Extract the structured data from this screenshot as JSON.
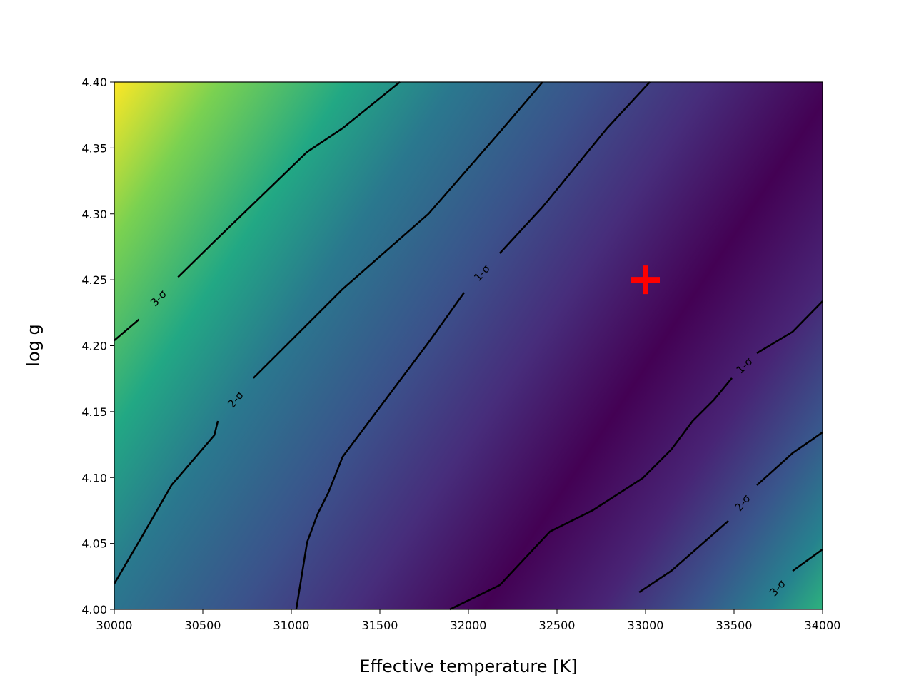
{
  "chart_data": {
    "type": "contour",
    "xlabel": "Effective temperature [K]",
    "ylabel": "log g",
    "xlim": [
      30000,
      34000
    ],
    "ylim": [
      4.0,
      4.4
    ],
    "xticks": [
      30000,
      30500,
      31000,
      31500,
      32000,
      32500,
      33000,
      33500,
      34000
    ],
    "yticks": [
      {
        "value": 4.0,
        "label": "4.00"
      },
      4.05,
      {
        "value": 4.1,
        "label": "4.10"
      },
      4.15,
      {
        "value": 4.2,
        "label": "4.20"
      },
      4.25,
      {
        "value": 4.3,
        "label": "4.30"
      },
      4.35,
      {
        "value": 4.4,
        "label": "4.40"
      }
    ],
    "line_color": "#000000",
    "contours": [
      {
        "label": "3-σ",
        "x": [
          30000,
          30140,
          null,
          30360,
          30565,
          31089,
          31290,
          31613
        ],
        "y": [
          4.204,
          4.22,
          null,
          4.252,
          4.279,
          4.347,
          4.365,
          4.4
        ]
      },
      {
        "label": "2-σ",
        "x": [
          30000,
          30161,
          30323,
          30565,
          30585,
          null,
          30786,
          31290,
          31774,
          32177,
          32419
        ],
        "y": [
          4.0195,
          4.0563,
          4.0942,
          4.1321,
          4.1429,
          null,
          4.1754,
          4.243,
          4.3,
          4.362,
          4.4
        ]
      },
      {
        "label": "1-σ",
        "x": [
          31028,
          31089,
          31149,
          31210,
          31290,
          31532,
          31774,
          31976,
          null,
          32177,
          32419,
          32782,
          33024
        ],
        "y": [
          4.0,
          4.0509,
          4.0725,
          4.0888,
          4.1158,
          4.1591,
          4.2024,
          4.2403,
          null,
          4.2701,
          4.3053,
          4.3648,
          4.4
        ]
      },
      {
        "label": "1-σ",
        "x": [
          31895,
          32177,
          32460,
          32702,
          32984,
          33145,
          33266,
          33387,
          33488,
          null,
          33629,
          33831,
          34000
        ],
        "y": [
          4.0,
          4.0184,
          4.059,
          4.0752,
          4.0996,
          4.1212,
          4.1429,
          4.1591,
          4.1754,
          null,
          4.1943,
          4.2106,
          4.2338
        ]
      },
      {
        "label": "2-σ",
        "x": [
          32964,
          33145,
          33468,
          null,
          33629,
          33831,
          34000
        ],
        "y": [
          4.013,
          4.0292,
          4.0671,
          null,
          4.0942,
          4.1186,
          4.1343
        ]
      },
      {
        "label": "3-σ",
        "x": [
          33660,
          null,
          33831,
          34000
        ],
        "y": [
          4.003,
          null,
          4.0292,
          4.0455
        ]
      }
    ],
    "marker": {
      "x": 33000,
      "y": 4.25,
      "color": "#ff0000"
    }
  }
}
